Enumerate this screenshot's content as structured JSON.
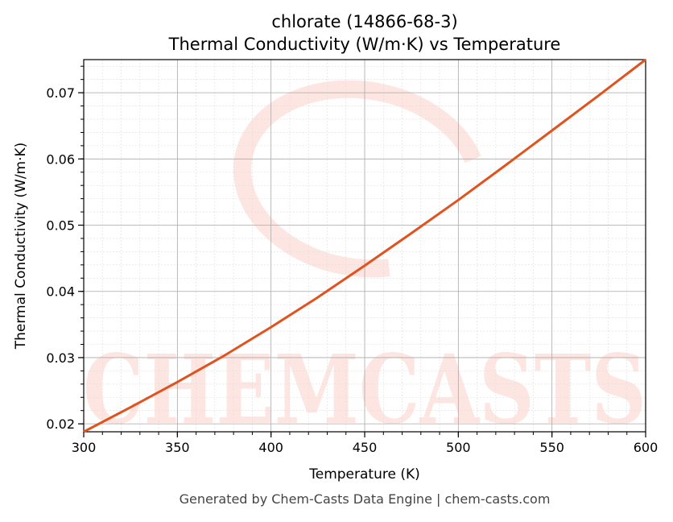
{
  "chart_data": {
    "type": "line",
    "title": "chlorate (14866-68-3)",
    "subtitle": "Thermal Conductivity (W/m·K) vs Temperature",
    "xlabel": "Temperature (K)",
    "ylabel": "Thermal Conductivity (W/m·K)",
    "xlim": [
      300,
      600
    ],
    "ylim": [
      0.0188,
      0.075
    ],
    "xticks": [
      "300",
      "350",
      "400",
      "450",
      "500",
      "550",
      "600"
    ],
    "yticks": [
      "0.02",
      "0.03",
      "0.04",
      "0.05",
      "0.06",
      "0.07"
    ],
    "grid": true,
    "line_color": "#e0531f",
    "series": [
      {
        "x": [
          300,
          325,
          350,
          375,
          400,
          425,
          450,
          475,
          500,
          525,
          550,
          575,
          600
        ],
        "values": [
          0.0188,
          0.0225,
          0.0263,
          0.0303,
          0.0346,
          0.0391,
          0.0439,
          0.0488,
          0.0538,
          0.059,
          0.0643,
          0.0696,
          0.075
        ]
      }
    ]
  },
  "watermark": "CHEMCASTS",
  "footer": "Generated by Chem-Casts Data Engine | chem-casts.com"
}
